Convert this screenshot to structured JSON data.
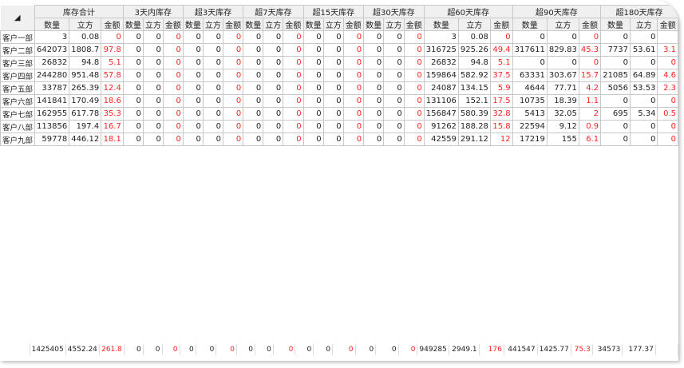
{
  "header": {
    "groups": [
      "库存合计",
      "3天内库存",
      "超3天库存",
      "超7天库存",
      "超15天库存",
      "超30天库存",
      "超60天库存",
      "超90天库存",
      "超180天库存"
    ],
    "sub": [
      "数量",
      "立方",
      "金额"
    ]
  },
  "rows": [
    {
      "name": "客户一部",
      "v": [
        "3",
        "0.08",
        "0",
        "0",
        "0",
        "0",
        "0",
        "0",
        "0",
        "0",
        "0",
        "0",
        "0",
        "0",
        "0",
        "0",
        "0",
        "0",
        "3",
        "0.08",
        "0",
        "0",
        "0",
        "0",
        "0",
        "0",
        ""
      ]
    },
    {
      "name": "客户二部",
      "v": [
        "642073",
        "1808.7",
        "97.8",
        "0",
        "0",
        "0",
        "0",
        "0",
        "0",
        "0",
        "0",
        "0",
        "0",
        "0",
        "0",
        "0",
        "0",
        "0",
        "316725",
        "925.26",
        "49.4",
        "317611",
        "829.83",
        "45.3",
        "7737",
        "53.61",
        "3.1"
      ]
    },
    {
      "name": "客户三部",
      "v": [
        "26832",
        "94.8",
        "5.1",
        "0",
        "0",
        "0",
        "0",
        "0",
        "0",
        "0",
        "0",
        "0",
        "0",
        "0",
        "0",
        "0",
        "0",
        "0",
        "26832",
        "94.8",
        "5.1",
        "0",
        "0",
        "0",
        "0",
        "0",
        "0"
      ]
    },
    {
      "name": "客户四部",
      "v": [
        "244280",
        "951.48",
        "57.8",
        "0",
        "0",
        "0",
        "0",
        "0",
        "0",
        "0",
        "0",
        "0",
        "0",
        "0",
        "0",
        "0",
        "0",
        "0",
        "159864",
        "582.92",
        "37.5",
        "63331",
        "303.67",
        "15.7",
        "21085",
        "64.89",
        "4.6"
      ]
    },
    {
      "name": "客户五部",
      "v": [
        "33787",
        "265.39",
        "12.4",
        "0",
        "0",
        "0",
        "0",
        "0",
        "0",
        "0",
        "0",
        "0",
        "0",
        "0",
        "0",
        "0",
        "0",
        "0",
        "24087",
        "134.15",
        "5.9",
        "4644",
        "77.71",
        "4.2",
        "5056",
        "53.53",
        "2.3"
      ]
    },
    {
      "name": "客户六部",
      "v": [
        "141841",
        "170.49",
        "18.6",
        "0",
        "0",
        "0",
        "0",
        "0",
        "0",
        "0",
        "0",
        "0",
        "0",
        "0",
        "0",
        "0",
        "0",
        "0",
        "131106",
        "152.1",
        "17.5",
        "10735",
        "18.39",
        "1.1",
        "0",
        "0",
        "0"
      ]
    },
    {
      "name": "客户七部",
      "v": [
        "162955",
        "617.78",
        "35.3",
        "0",
        "0",
        "0",
        "0",
        "0",
        "0",
        "0",
        "0",
        "0",
        "0",
        "0",
        "0",
        "0",
        "0",
        "0",
        "156847",
        "580.39",
        "32.8",
        "5413",
        "32.05",
        "2",
        "695",
        "5.34",
        "0.5"
      ]
    },
    {
      "name": "客户八部",
      "v": [
        "113856",
        "197.4",
        "16.7",
        "0",
        "0",
        "0",
        "0",
        "0",
        "0",
        "0",
        "0",
        "0",
        "0",
        "0",
        "0",
        "0",
        "0",
        "0",
        "91262",
        "188.28",
        "15.8",
        "22594",
        "9.12",
        "0.9",
        "0",
        "0",
        "0"
      ]
    },
    {
      "name": "客户九部",
      "v": [
        "59778",
        "446.12",
        "18.1",
        "0",
        "0",
        "0",
        "0",
        "0",
        "0",
        "0",
        "0",
        "0",
        "0",
        "0",
        "0",
        "0",
        "0",
        "0",
        "42559",
        "291.12",
        "12",
        "17219",
        "155",
        "6.1",
        "0",
        "0",
        "0"
      ]
    }
  ],
  "total": [
    "1425405",
    "4552.24",
    "261.8",
    "0",
    "0",
    "0",
    "0",
    "0",
    "0",
    "0",
    "0",
    "0",
    "0",
    "0",
    "0",
    "0",
    "0",
    "0",
    "949285",
    "2949.1",
    "176",
    "441547",
    "1425.77",
    "75.3",
    "34573",
    "177.37",
    ""
  ],
  "colors": {
    "amount": "#ff2222",
    "header_bg": "#f0f0f0"
  }
}
